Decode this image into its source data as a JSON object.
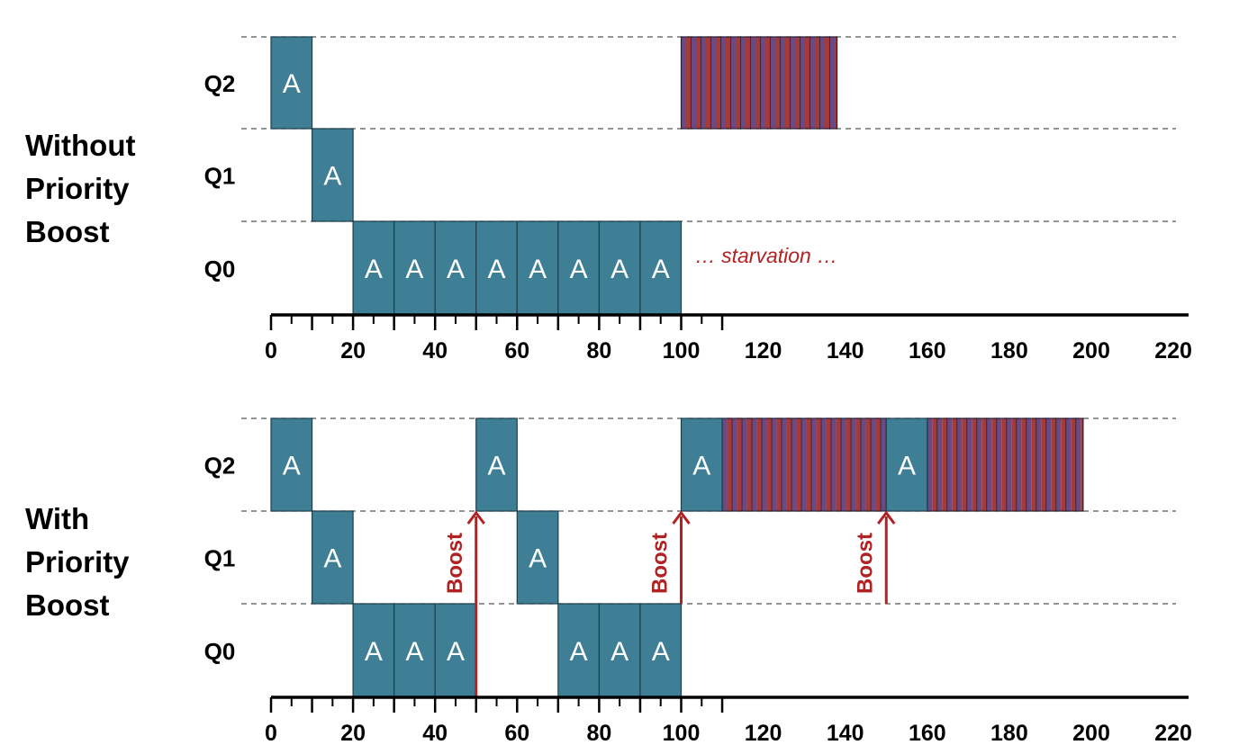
{
  "panels": [
    {
      "id": "without",
      "title_lines": [
        "Without",
        "Priority",
        "Boost"
      ],
      "queue_labels": [
        "Q2",
        "Q1",
        "Q0"
      ],
      "tick_labels": [
        "0",
        "20",
        "40",
        "60",
        "80",
        "100",
        "120",
        "140",
        "160",
        "180",
        "200",
        "220"
      ],
      "blocks": [
        {
          "queue": "Q2",
          "start": 0,
          "end": 10,
          "label": "A"
        },
        {
          "queue": "Q1",
          "start": 10,
          "end": 20,
          "label": "A"
        },
        {
          "queue": "Q0",
          "start": 20,
          "end": 30,
          "label": "A"
        },
        {
          "queue": "Q0",
          "start": 30,
          "end": 40,
          "label": "A"
        },
        {
          "queue": "Q0",
          "start": 40,
          "end": 50,
          "label": "A"
        },
        {
          "queue": "Q0",
          "start": 50,
          "end": 60,
          "label": "A"
        },
        {
          "queue": "Q0",
          "start": 60,
          "end": 70,
          "label": "A"
        },
        {
          "queue": "Q0",
          "start": 70,
          "end": 80,
          "label": "A"
        },
        {
          "queue": "Q0",
          "start": 80,
          "end": 90,
          "label": "A"
        },
        {
          "queue": "Q0",
          "start": 90,
          "end": 100,
          "label": "A"
        }
      ],
      "striped": [
        {
          "queue": "Q2",
          "start": 100,
          "end": 138
        }
      ],
      "boosts": [],
      "annotation": {
        "text": "… starvation …",
        "at": 104,
        "queue": "Q0"
      }
    },
    {
      "id": "with",
      "title_lines": [
        "With",
        "Priority",
        "Boost"
      ],
      "queue_labels": [
        "Q2",
        "Q1",
        "Q0"
      ],
      "tick_labels": [
        "0",
        "20",
        "40",
        "60",
        "80",
        "100",
        "120",
        "140",
        "160",
        "180",
        "200",
        "220"
      ],
      "blocks": [
        {
          "queue": "Q2",
          "start": 0,
          "end": 10,
          "label": "A"
        },
        {
          "queue": "Q1",
          "start": 10,
          "end": 20,
          "label": "A"
        },
        {
          "queue": "Q0",
          "start": 20,
          "end": 30,
          "label": "A"
        },
        {
          "queue": "Q0",
          "start": 30,
          "end": 40,
          "label": "A"
        },
        {
          "queue": "Q0",
          "start": 40,
          "end": 50,
          "label": "A"
        },
        {
          "queue": "Q2",
          "start": 50,
          "end": 60,
          "label": "A"
        },
        {
          "queue": "Q1",
          "start": 60,
          "end": 70,
          "label": "A"
        },
        {
          "queue": "Q0",
          "start": 70,
          "end": 80,
          "label": "A"
        },
        {
          "queue": "Q0",
          "start": 80,
          "end": 90,
          "label": "A"
        },
        {
          "queue": "Q0",
          "start": 90,
          "end": 100,
          "label": "A"
        },
        {
          "queue": "Q2",
          "start": 100,
          "end": 110,
          "label": "A"
        },
        {
          "queue": "Q2",
          "start": 150,
          "end": 160,
          "label": "A"
        }
      ],
      "striped": [
        {
          "queue": "Q2",
          "start": 110,
          "end": 150
        },
        {
          "queue": "Q2",
          "start": 160,
          "end": 198
        }
      ],
      "boosts": [
        {
          "at": 50,
          "label": "Boost",
          "from": "Q0-bottom"
        },
        {
          "at": 100,
          "label": "Boost",
          "from": "Q1-bottom"
        },
        {
          "at": 150,
          "label": "Boost",
          "from": "Q1-bottom"
        }
      ],
      "annotation": null
    }
  ],
  "colors": {
    "teal": "#3e7f96",
    "teal_border": "#1e3e4b",
    "stripe_purple": "#6a4a82",
    "stripe_red": "#a53a3a",
    "accent_red": "#b22222",
    "axis": "#000000",
    "dashed": "#555555"
  }
}
